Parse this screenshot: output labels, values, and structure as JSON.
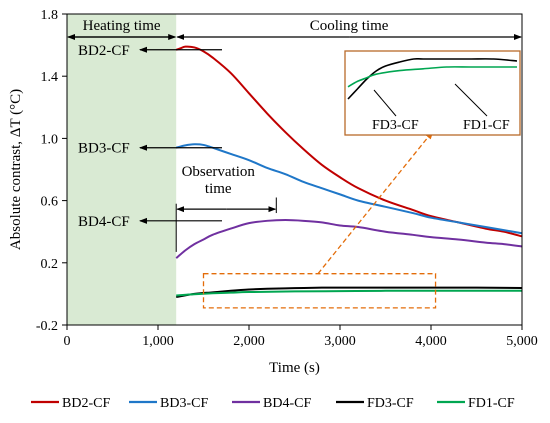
{
  "chart_data": {
    "type": "line",
    "xlabel": "Time (s)",
    "ylabel": "Absolute contrast, ΔT (°C)",
    "xlim": [
      0,
      5000
    ],
    "ylim": [
      -0.2,
      1.8
    ],
    "x_ticks": [
      {
        "value": 0,
        "label": "0"
      },
      {
        "value": 1000,
        "label": "1,000"
      },
      {
        "value": 2000,
        "label": "2,000"
      },
      {
        "value": 3000,
        "label": "3,000"
      },
      {
        "value": 4000,
        "label": "4,000"
      },
      {
        "value": 5000,
        "label": "5,000"
      }
    ],
    "y_ticks": [
      {
        "value": -0.2,
        "label": "-0.2"
      },
      {
        "value": 0.2,
        "label": "0.2"
      },
      {
        "value": 0.6,
        "label": "0.6"
      },
      {
        "value": 1.0,
        "label": "1.0"
      },
      {
        "value": 1.4,
        "label": "1.4"
      },
      {
        "value": 1.8,
        "label": "1.8"
      }
    ],
    "grid": false,
    "legend_placement": "bottom",
    "heating_region": {
      "x_start": 0,
      "x_end": 1200,
      "color": "#d9ead3"
    },
    "series": [
      {
        "name": "BD2-CF",
        "color": "#c00000",
        "points": [
          [
            1200,
            1.57
          ],
          [
            1250,
            1.58
          ],
          [
            1300,
            1.59
          ],
          [
            1400,
            1.585
          ],
          [
            1500,
            1.56
          ],
          [
            1600,
            1.52
          ],
          [
            1800,
            1.42
          ],
          [
            2000,
            1.29
          ],
          [
            2200,
            1.16
          ],
          [
            2400,
            1.04
          ],
          [
            2600,
            0.93
          ],
          [
            2800,
            0.83
          ],
          [
            3000,
            0.75
          ],
          [
            3200,
            0.68
          ],
          [
            3500,
            0.6
          ],
          [
            3800,
            0.54
          ],
          [
            4000,
            0.5
          ],
          [
            4300,
            0.46
          ],
          [
            4600,
            0.42
          ],
          [
            4800,
            0.4
          ],
          [
            5000,
            0.37
          ]
        ]
      },
      {
        "name": "BD3-CF",
        "color": "#1f77c8",
        "points": [
          [
            1200,
            0.94
          ],
          [
            1300,
            0.955
          ],
          [
            1400,
            0.962
          ],
          [
            1500,
            0.958
          ],
          [
            1600,
            0.94
          ],
          [
            1800,
            0.9
          ],
          [
            2000,
            0.86
          ],
          [
            2200,
            0.81
          ],
          [
            2400,
            0.77
          ],
          [
            2600,
            0.72
          ],
          [
            2800,
            0.68
          ],
          [
            3000,
            0.64
          ],
          [
            3200,
            0.6
          ],
          [
            3500,
            0.56
          ],
          [
            3800,
            0.52
          ],
          [
            4000,
            0.49
          ],
          [
            4300,
            0.46
          ],
          [
            4600,
            0.43
          ],
          [
            4800,
            0.41
          ],
          [
            5000,
            0.39
          ]
        ]
      },
      {
        "name": "BD4-CF",
        "color": "#7030a0",
        "points": [
          [
            1200,
            0.23
          ],
          [
            1300,
            0.28
          ],
          [
            1400,
            0.32
          ],
          [
            1500,
            0.35
          ],
          [
            1600,
            0.38
          ],
          [
            1800,
            0.42
          ],
          [
            2000,
            0.455
          ],
          [
            2200,
            0.47
          ],
          [
            2400,
            0.475
          ],
          [
            2600,
            0.47
          ],
          [
            2800,
            0.46
          ],
          [
            3000,
            0.44
          ],
          [
            3200,
            0.43
          ],
          [
            3500,
            0.4
          ],
          [
            3800,
            0.38
          ],
          [
            4000,
            0.365
          ],
          [
            4300,
            0.35
          ],
          [
            4600,
            0.33
          ],
          [
            4800,
            0.32
          ],
          [
            5000,
            0.305
          ]
        ]
      },
      {
        "name": "FD3-CF",
        "color": "#000000",
        "points": [
          [
            1200,
            -0.02
          ],
          [
            1400,
            0.0
          ],
          [
            1600,
            0.01
          ],
          [
            1800,
            0.02
          ],
          [
            2000,
            0.028
          ],
          [
            2200,
            0.033
          ],
          [
            2500,
            0.037
          ],
          [
            2800,
            0.04
          ],
          [
            3000,
            0.04
          ],
          [
            3500,
            0.04
          ],
          [
            4000,
            0.04
          ],
          [
            4500,
            0.04
          ],
          [
            5000,
            0.038
          ]
        ]
      },
      {
        "name": "FD1-CF",
        "color": "#00a651",
        "points": [
          [
            1200,
            -0.01
          ],
          [
            1400,
            -0.002
          ],
          [
            1600,
            0.004
          ],
          [
            1800,
            0.008
          ],
          [
            2000,
            0.012
          ],
          [
            2500,
            0.016
          ],
          [
            3000,
            0.018
          ],
          [
            3500,
            0.02
          ],
          [
            4000,
            0.02
          ],
          [
            4500,
            0.02
          ],
          [
            5000,
            0.02
          ]
        ]
      }
    ],
    "annotations": {
      "heating_label": "Heating time",
      "cooling_label": "Cooling time",
      "observation_label_1": "Observation",
      "observation_label_2": "time",
      "observation_x": [
        1200,
        2300
      ],
      "curve_labels": [
        {
          "text": "BD2-CF",
          "y": 1.57
        },
        {
          "text": "BD3-CF",
          "y": 0.94
        },
        {
          "text": "BD4-CF",
          "y": 0.47
        }
      ],
      "zoom_box_x": [
        1500,
        4050
      ],
      "zoom_box_y": [
        -0.09,
        0.13
      ],
      "inset_labels": [
        "FD3-CF",
        "FD1-CF"
      ]
    }
  }
}
